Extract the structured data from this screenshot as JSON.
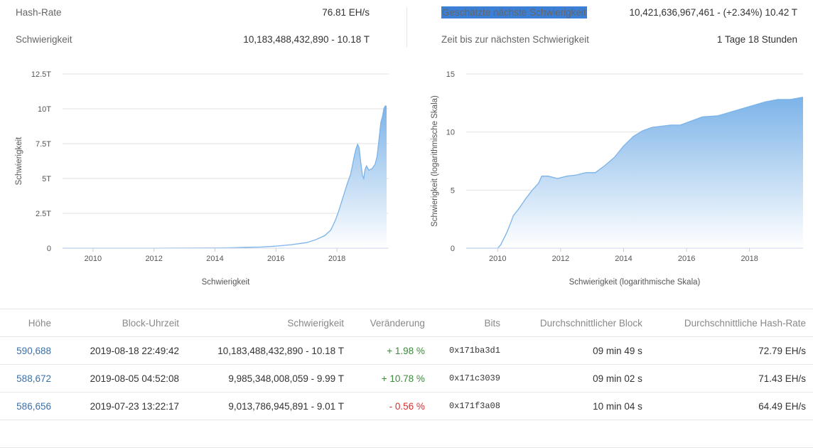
{
  "stats": {
    "hashrate_label": "Hash-Rate",
    "hashrate_value": "76.81 EH/s",
    "difficulty_label": "Schwierigkeit",
    "difficulty_value": "10,183,488,432,890 - 10.18 T",
    "next_label": "Geschätzte nächste Schwierigkeit",
    "next_value": "10,421,636,967,461 - (+2.34%) 10.42 T",
    "time_label": "Zeit bis zur nächsten Schwierigkeit",
    "time_value": "1 Tage 18 Stunden"
  },
  "colors": {
    "area_top": "#7cb3e8",
    "area_bottom": "#ffffff",
    "line": "#7cb3e8",
    "link": "#3d6fa8",
    "positive": "#3c8a3c",
    "negative": "#d23030",
    "highlight": "#3b7fd6"
  },
  "chart_data": [
    {
      "type": "area",
      "xlabel": "Schwierigkeit",
      "ylabel": "Schwierigkeit",
      "x_ticks": [
        "2010",
        "2012",
        "2014",
        "2016",
        "2018"
      ],
      "y_ticks": [
        "0",
        "2.5T",
        "5T",
        "7.5T",
        "10T",
        "12.5T"
      ],
      "xlim": [
        2009.0,
        2019.7
      ],
      "ylim": [
        0,
        12.5
      ],
      "grid": true,
      "x": [
        2009.0,
        2010.0,
        2011.0,
        2012.0,
        2013.0,
        2014.0,
        2014.5,
        2015.0,
        2015.5,
        2016.0,
        2016.5,
        2017.0,
        2017.3,
        2017.6,
        2017.8,
        2017.95,
        2018.05,
        2018.15,
        2018.25,
        2018.35,
        2018.45,
        2018.55,
        2018.62,
        2018.68,
        2018.73,
        2018.78,
        2018.84,
        2018.88,
        2018.92,
        2018.97,
        2019.05,
        2019.15,
        2019.25,
        2019.32,
        2019.38,
        2019.44,
        2019.5,
        2019.54,
        2019.58,
        2019.63
      ],
      "y": [
        0,
        0,
        0,
        0.0001,
        0.01,
        0.02,
        0.03,
        0.06,
        0.08,
        0.15,
        0.25,
        0.4,
        0.6,
        0.9,
        1.3,
        2.0,
        2.6,
        3.3,
        4.0,
        4.7,
        5.3,
        6.4,
        7.1,
        7.45,
        7.2,
        6.2,
        5.2,
        5.0,
        5.6,
        5.9,
        5.6,
        5.7,
        6.0,
        6.6,
        7.8,
        9.0,
        9.5,
        10.0,
        10.2,
        10.2
      ]
    },
    {
      "type": "area",
      "xlabel": "Schwierigkeit (logarithmische Skala)",
      "ylabel": "Schwierigkeit (logarithmische Skala)",
      "x_ticks": [
        "2010",
        "2012",
        "2014",
        "2016",
        "2018"
      ],
      "y_ticks": [
        "0",
        "5",
        "10",
        "15"
      ],
      "xlim": [
        2009.0,
        2019.7
      ],
      "ylim": [
        0,
        15
      ],
      "grid": true,
      "x": [
        2009.0,
        2010.0,
        2010.1,
        2010.3,
        2010.5,
        2010.7,
        2010.9,
        2011.1,
        2011.3,
        2011.4,
        2011.6,
        2011.9,
        2012.2,
        2012.5,
        2012.8,
        2013.1,
        2013.4,
        2013.7,
        2014.0,
        2014.3,
        2014.6,
        2014.9,
        2015.2,
        2015.5,
        2015.8,
        2016.0,
        2016.5,
        2017.0,
        2017.5,
        2018.0,
        2018.5,
        2018.9,
        2019.3,
        2019.5,
        2019.7
      ],
      "y": [
        0,
        0,
        0.3,
        1.4,
        2.8,
        3.5,
        4.3,
        5.0,
        5.6,
        6.2,
        6.2,
        6.0,
        6.2,
        6.3,
        6.5,
        6.5,
        7.1,
        7.8,
        8.8,
        9.6,
        10.1,
        10.4,
        10.5,
        10.6,
        10.6,
        10.8,
        11.3,
        11.4,
        11.8,
        12.2,
        12.6,
        12.8,
        12.8,
        12.9,
        13.0
      ]
    }
  ],
  "table": {
    "headers": [
      "Höhe",
      "Block-Uhrzeit",
      "Schwierigkeit",
      "Veränderung",
      "Bits",
      "Durchschnittlicher Block",
      "Durchschnittliche Hash-Rate"
    ],
    "rows": [
      [
        "590,688",
        "2019-08-18 22:49:42",
        "10,183,488,432,890 - 10.18 T",
        "+ 1.98 %",
        "0x171ba3d1",
        "09 min 49 s",
        "72.79 EH/s"
      ],
      [
        "588,672",
        "2019-08-05 04:52:08",
        "9,985,348,008,059 - 9.99 T",
        "+ 10.78 %",
        "0x171c3039",
        "09 min 02 s",
        "71.43 EH/s"
      ],
      [
        "586,656",
        "2019-07-23 13:22:17",
        "9,013,786,945,891 - 9.01 T",
        "- 0.56 %",
        "0x171f3a08",
        "10 min 04 s",
        "64.49 EH/s"
      ]
    ]
  }
}
